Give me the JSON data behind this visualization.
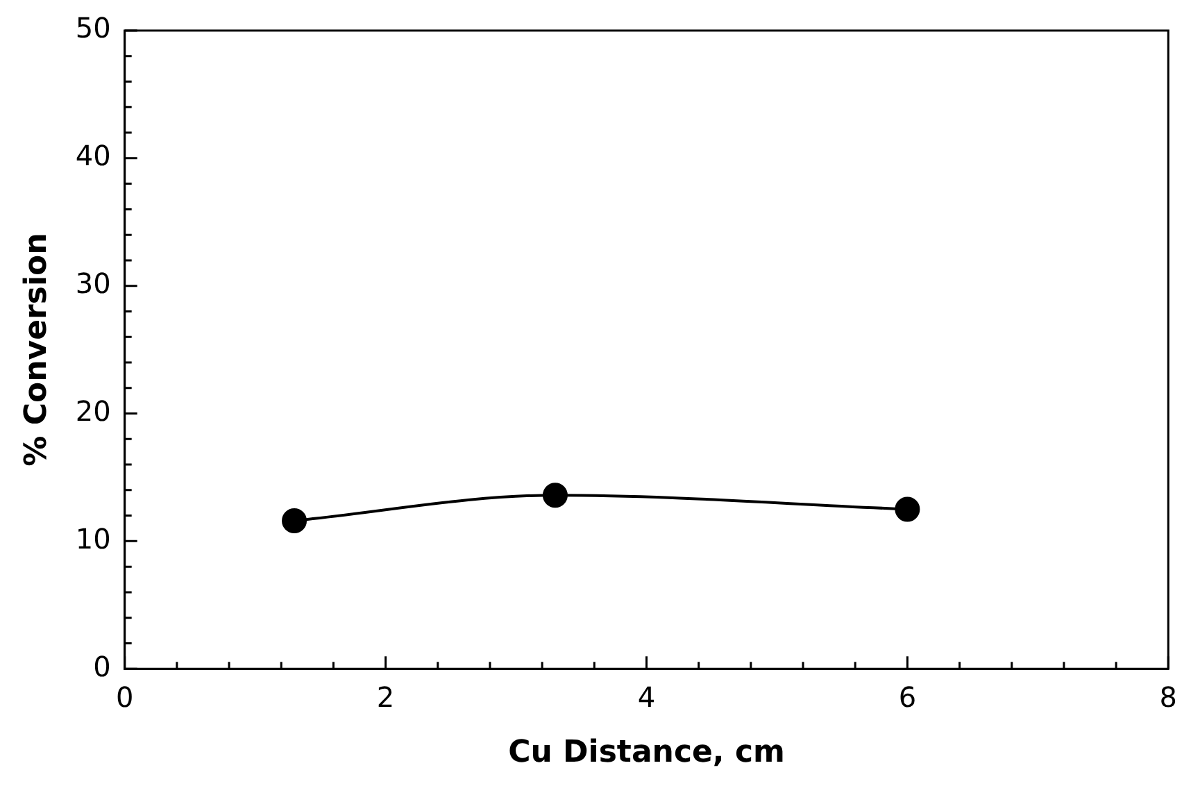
{
  "chart_data": {
    "type": "line",
    "xlabel": "Cu Distance, cm",
    "ylabel": "% Conversion",
    "x": [
      1.3,
      3.3,
      6.0
    ],
    "series": [
      {
        "color": "#000000",
        "values": [
          11.6,
          13.6,
          12.5
        ]
      }
    ],
    "marker": "circle",
    "line_style": "solid",
    "legend": false,
    "grid": false,
    "xlim": [
      0,
      8
    ],
    "ylim": [
      0,
      50
    ],
    "xticks": [
      0,
      {
        "value": 0.4,
        "label": null
      },
      {
        "value": 0.8,
        "label": null
      },
      {
        "value": 1.2,
        "label": null
      },
      {
        "value": 1.6,
        "label": null
      },
      2,
      {
        "value": 2.4,
        "label": null
      },
      {
        "value": 2.8,
        "label": null
      },
      {
        "value": 3.2,
        "label": null
      },
      {
        "value": 3.6,
        "label": null
      },
      4,
      {
        "value": 4.4,
        "label": null
      },
      {
        "value": 4.8,
        "label": null
      },
      {
        "value": 5.2,
        "label": null
      },
      {
        "value": 5.6,
        "label": null
      },
      6,
      {
        "value": 6.4,
        "label": null
      },
      {
        "value": 6.8,
        "label": null
      },
      {
        "value": 7.2,
        "label": null
      },
      {
        "value": 7.6,
        "label": null
      },
      8
    ],
    "yticks": [
      0,
      {
        "value": 2,
        "label": null
      },
      {
        "value": 4,
        "label": null
      },
      {
        "value": 6,
        "label": null
      },
      {
        "value": 8,
        "label": null
      },
      10,
      {
        "value": 12,
        "label": null
      },
      {
        "value": 14,
        "label": null
      },
      {
        "value": 16,
        "label": null
      },
      {
        "value": 18,
        "label": null
      },
      20,
      {
        "value": 22,
        "label": null
      },
      {
        "value": 24,
        "label": null
      },
      {
        "value": 26,
        "label": null
      },
      {
        "value": 28,
        "label": null
      },
      30,
      {
        "value": 32,
        "label": null
      },
      {
        "value": 34,
        "label": null
      },
      {
        "value": 36,
        "label": null
      },
      {
        "value": 38,
        "label": null
      },
      40,
      {
        "value": 42,
        "label": null
      },
      {
        "value": 44,
        "label": null
      },
      {
        "value": 46,
        "label": null
      },
      {
        "value": 48,
        "label": null
      },
      50
    ]
  }
}
